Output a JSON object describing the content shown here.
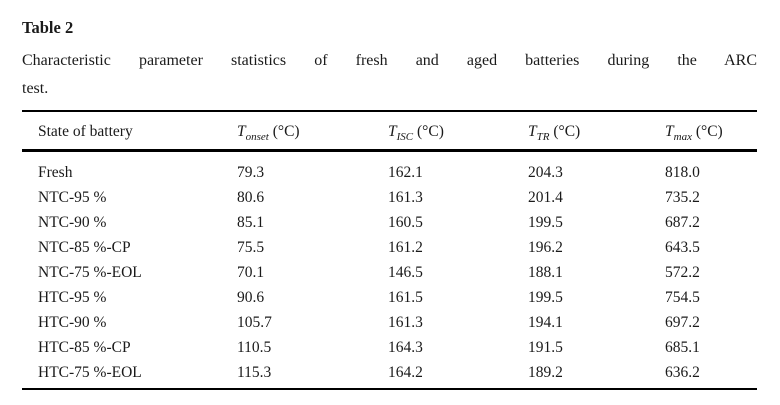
{
  "title": "Table 2",
  "caption_lines": [
    "Characteristic parameter statistics of fresh and aged batteries during the ARC",
    "test."
  ],
  "table": {
    "headers": [
      {
        "label": "State of battery"
      },
      {
        "symbol": "T",
        "subscript": "onset",
        "unit": "(°C)"
      },
      {
        "symbol": "T",
        "subscript": "ISC",
        "unit": "(°C)"
      },
      {
        "symbol": "T",
        "subscript": "TR",
        "unit": "(°C)"
      },
      {
        "symbol": "T",
        "subscript": "max",
        "unit": "(°C)"
      }
    ],
    "rows": [
      [
        "Fresh",
        "79.3",
        "162.1",
        "204.3",
        "818.0"
      ],
      [
        "NTC-95 %",
        "80.6",
        "161.3",
        "201.4",
        "735.2"
      ],
      [
        "NTC-90 %",
        "85.1",
        "160.5",
        "199.5",
        "687.2"
      ],
      [
        "NTC-85 %-CP",
        "75.5",
        "161.2",
        "196.2",
        "643.5"
      ],
      [
        "NTC-75 %-EOL",
        "70.1",
        "146.5",
        "188.1",
        "572.2"
      ],
      [
        "HTC-95 %",
        "90.6",
        "161.5",
        "199.5",
        "754.5"
      ],
      [
        "HTC-90 %",
        "105.7",
        "161.3",
        "194.1",
        "697.2"
      ],
      [
        "HTC-85 %-CP",
        "110.5",
        "164.3",
        "191.5",
        "685.1"
      ],
      [
        "HTC-75 %-EOL",
        "115.3",
        "164.2",
        "189.2",
        "636.2"
      ]
    ]
  },
  "colors": {
    "background": "#ffffff",
    "text": "#1a1a1a",
    "rule": "#000000"
  }
}
